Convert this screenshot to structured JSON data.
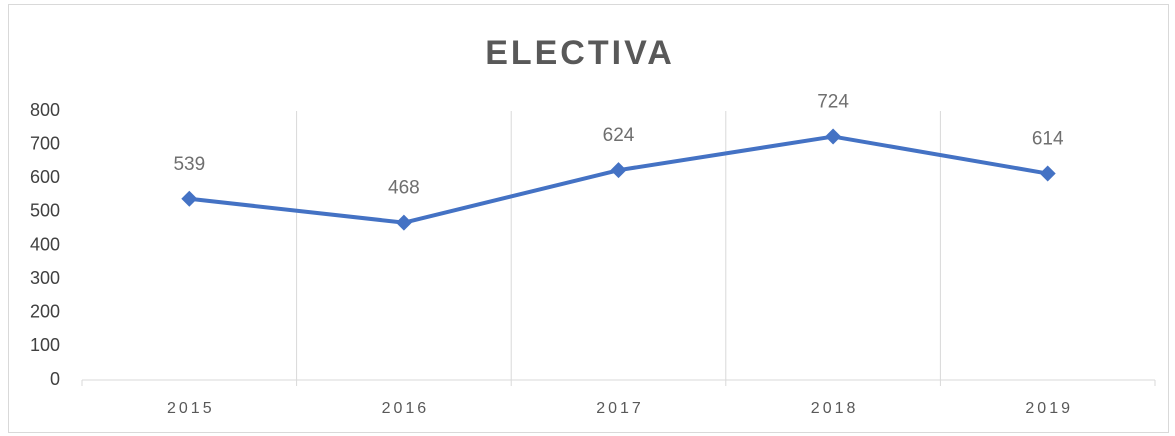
{
  "chart_data": {
    "type": "line",
    "title": "ELECTIVA",
    "categories": [
      "2015",
      "2016",
      "2017",
      "2018",
      "2019"
    ],
    "values": [
      539,
      468,
      624,
      724,
      614
    ],
    "color": "#4472c4",
    "ylim": [
      0,
      800
    ],
    "yticks": [
      0,
      100,
      200,
      300,
      400,
      500,
      600,
      700,
      800
    ],
    "data_labels": true
  }
}
